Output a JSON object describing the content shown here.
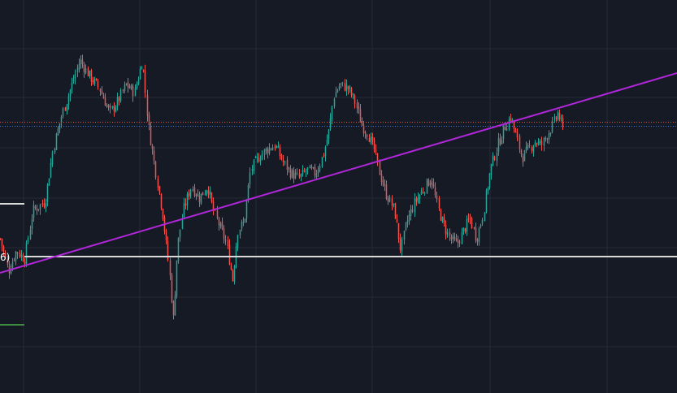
{
  "colors": {
    "background": "#161a25",
    "grid": "#252a37",
    "up": "#26a69a",
    "down": "#ef5350",
    "trendline": "#b026d9",
    "support_line": "#d9d9d9",
    "red_dotted_line": "#e0593e",
    "blue_dotted_line": "#3a7bd5",
    "green_marker": "#4caf50"
  },
  "overlay": {
    "edge_label": "6)"
  },
  "chart_data": {
    "type": "candlestick",
    "ylim": [
      0,
      484
    ],
    "grid": true,
    "legend": "none",
    "trendline": {
      "from": [
        0,
        148
      ],
      "to": [
        833,
        394
      ]
    },
    "horizontal_levels": {
      "support": 168,
      "red_dotted": 334,
      "blue_dotted": 329,
      "upper_white_segment": 233,
      "green_marker_segment": 84
    },
    "price_path": [
      [
        0,
        190
      ],
      [
        10,
        150
      ],
      [
        20,
        175
      ],
      [
        30,
        165
      ],
      [
        40,
        225
      ],
      [
        55,
        235
      ],
      [
        65,
        300
      ],
      [
        75,
        340
      ],
      [
        85,
        370
      ],
      [
        98,
        410
      ],
      [
        110,
        390
      ],
      [
        122,
        375
      ],
      [
        135,
        345
      ],
      [
        145,
        360
      ],
      [
        155,
        380
      ],
      [
        165,
        370
      ],
      [
        175,
        410
      ],
      [
        182,
        330
      ],
      [
        190,
        280
      ],
      [
        200,
        220
      ],
      [
        208,
        150
      ],
      [
        213,
        90
      ],
      [
        218,
        180
      ],
      [
        225,
        225
      ],
      [
        235,
        255
      ],
      [
        245,
        240
      ],
      [
        255,
        255
      ],
      [
        262,
        225
      ],
      [
        270,
        205
      ],
      [
        278,
        185
      ],
      [
        286,
        140
      ],
      [
        292,
        200
      ],
      [
        300,
        210
      ],
      [
        308,
        275
      ],
      [
        318,
        290
      ],
      [
        328,
        300
      ],
      [
        338,
        305
      ],
      [
        348,
        285
      ],
      [
        358,
        270
      ],
      [
        368,
        265
      ],
      [
        378,
        275
      ],
      [
        388,
        270
      ],
      [
        398,
        295
      ],
      [
        405,
        325
      ],
      [
        410,
        365
      ],
      [
        418,
        380
      ],
      [
        428,
        375
      ],
      [
        436,
        360
      ],
      [
        445,
        330
      ],
      [
        452,
        320
      ],
      [
        460,
        300
      ],
      [
        467,
        270
      ],
      [
        475,
        245
      ],
      [
        485,
        225
      ],
      [
        493,
        175
      ],
      [
        500,
        210
      ],
      [
        510,
        235
      ],
      [
        520,
        250
      ],
      [
        530,
        265
      ],
      [
        538,
        230
      ],
      [
        546,
        205
      ],
      [
        554,
        190
      ],
      [
        562,
        183
      ],
      [
        570,
        200
      ],
      [
        578,
        215
      ],
      [
        586,
        190
      ],
      [
        594,
        220
      ],
      [
        603,
        275
      ],
      [
        612,
        305
      ],
      [
        622,
        330
      ],
      [
        628,
        340
      ],
      [
        635,
        315
      ],
      [
        642,
        290
      ],
      [
        650,
        300
      ],
      [
        658,
        310
      ],
      [
        666,
        305
      ],
      [
        674,
        320
      ],
      [
        680,
        330
      ],
      [
        686,
        345
      ],
      [
        691,
        330
      ],
      [
        694,
        315
      ]
    ]
  }
}
